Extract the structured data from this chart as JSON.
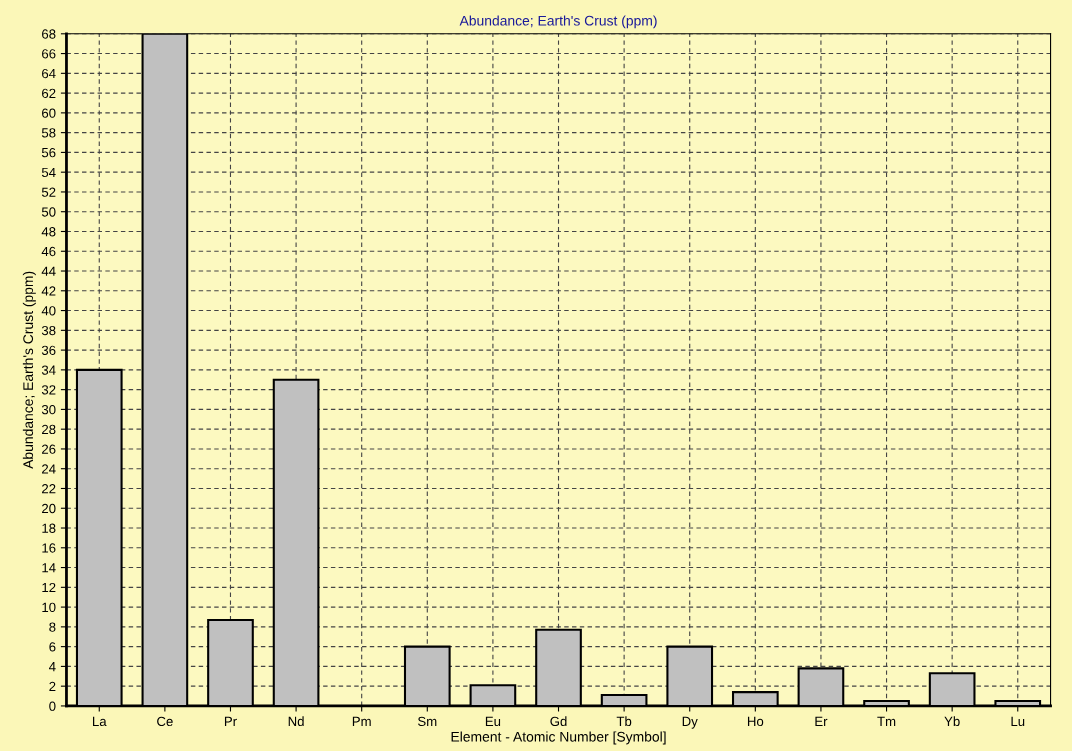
{
  "chart_data": {
    "type": "bar",
    "title": "Abundance; Earth's Crust (ppm)",
    "xlabel": "Element - Atomic Number [Symbol]",
    "ylabel": "Abundance; Earth's Crust (ppm)",
    "categories": [
      "La",
      "Ce",
      "Pr",
      "Nd",
      "Pm",
      "Sm",
      "Eu",
      "Gd",
      "Tb",
      "Dy",
      "Ho",
      "Er",
      "Tm",
      "Yb",
      "Lu"
    ],
    "values": [
      34,
      68,
      8.7,
      33,
      null,
      6,
      2.1,
      7.7,
      1.1,
      6,
      1.4,
      3.8,
      0.5,
      3.3,
      0.5
    ],
    "color": "#c0c0c0",
    "ylim": [
      0,
      68
    ],
    "yticks": [
      0,
      2,
      4,
      6,
      8,
      10,
      12,
      14,
      16,
      18,
      20,
      22,
      24,
      26,
      28,
      30,
      32,
      34,
      36,
      38,
      40,
      42,
      44,
      46,
      48,
      50,
      52,
      54,
      56,
      58,
      60,
      62,
      64,
      66,
      68
    ],
    "grid": true,
    "legend": false
  }
}
